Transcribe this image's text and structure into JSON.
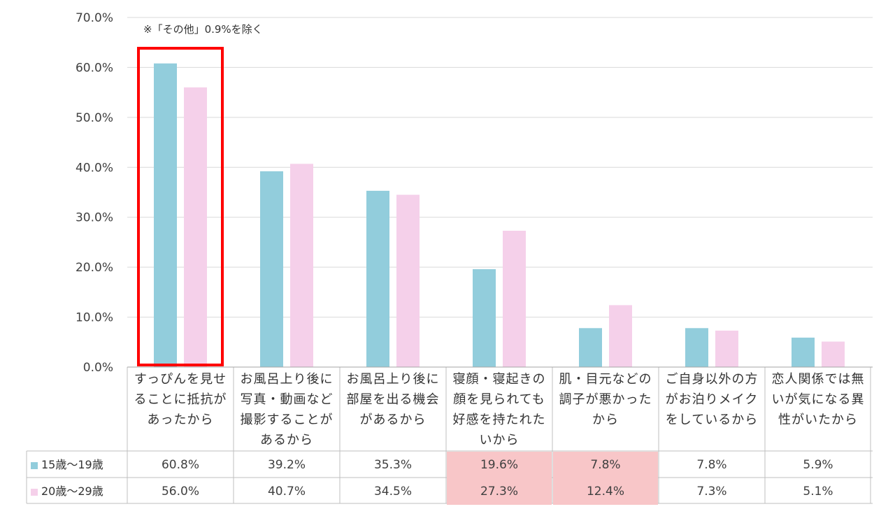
{
  "chart_data": {
    "type": "bar",
    "title": "",
    "note": "※「その他」0.9%を除く",
    "yticks": [
      "0.0%",
      "10.0%",
      "20.0%",
      "30.0%",
      "40.0%",
      "50.0%",
      "60.0%",
      "70.0%"
    ],
    "ylim": [
      0,
      70
    ],
    "grid": true,
    "categories": [
      "すっぴんを見せることに抵抗があったから",
      "お風呂上り後に写真・動画など撮影することがあるから",
      "お風呂上り後に部屋を出る機会があるから",
      "寝顔・寝起きの顔を見られても好感を持たれたいから",
      "肌・目元などの調子が悪かったから",
      "ご自身以外の方がお泊りメイクをしているから",
      "恋人関係では無いが気になる異性がいたから"
    ],
    "series": [
      {
        "name": "15歳～19歳",
        "color": "#92cddc",
        "values": [
          60.8,
          39.2,
          35.3,
          19.6,
          7.8,
          7.8,
          5.9
        ],
        "labels": [
          "60.8%",
          "39.2%",
          "35.3%",
          "19.6%",
          "7.8%",
          "7.8%",
          "5.9%"
        ]
      },
      {
        "name": "20歳～29歳",
        "color": "#f5d0ea",
        "values": [
          56.0,
          40.7,
          34.5,
          27.3,
          12.4,
          7.3,
          5.1
        ],
        "labels": [
          "56.0%",
          "40.7%",
          "34.5%",
          "27.3%",
          "12.4%",
          "7.3%",
          "5.1%"
        ]
      }
    ],
    "highlight_category_index": 0,
    "highlight_color": "#ff0000",
    "table_highlight_columns": [
      3,
      4
    ],
    "table_highlight_color": "#f8c6c8"
  }
}
